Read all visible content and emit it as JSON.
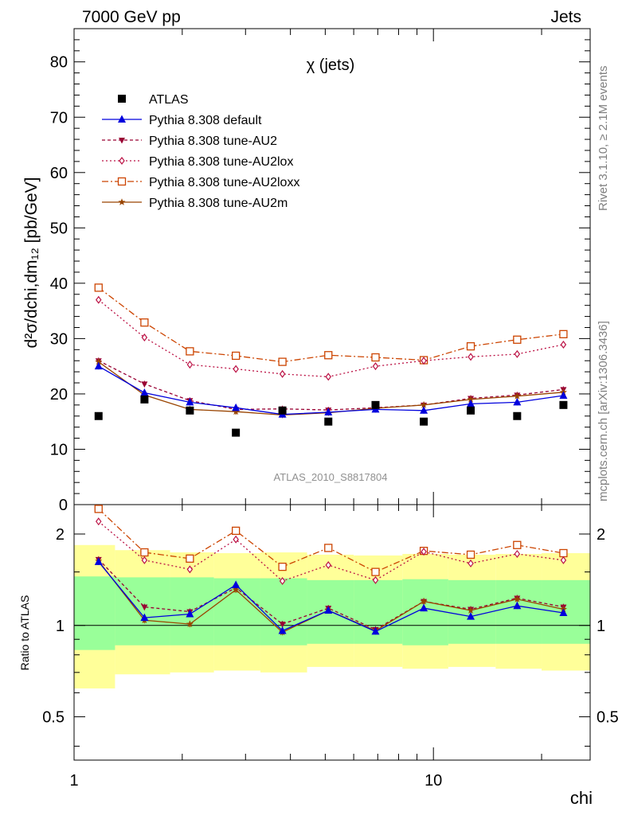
{
  "header": {
    "left": "7000 GeV pp",
    "right": "Jets"
  },
  "side_labels": {
    "rivet": "Rivet 3.1.10, ≥ 2.1M events",
    "mcplots": "mcplots.cern.ch [arXiv:1306.3436]"
  },
  "colors": {
    "atlas": "#000000",
    "default": "#0000dd",
    "au2": "#990033",
    "au2lox": "#bb1144",
    "au2loxx": "#cc4400",
    "au2m": "#994400",
    "band_outer": "#ffff99",
    "band_inner": "#99ff99"
  },
  "chart_data": [
    {
      "type": "line",
      "title": "χ (jets)",
      "annotation": "ATLAS_2010_S8817804",
      "ylabel": "d²σ/dchi,dm₁₂ [pb/GeV]",
      "xscale": "log",
      "ylim": [
        0,
        86
      ],
      "yticks": [
        0,
        10,
        20,
        30,
        40,
        50,
        60,
        70,
        80
      ],
      "x": [
        1.17,
        1.57,
        2.1,
        2.82,
        3.8,
        5.1,
        6.9,
        9.4,
        12.7,
        17.1,
        23.0
      ],
      "series": [
        {
          "name": "ATLAS",
          "values": [
            16,
            19,
            17,
            13,
            17,
            15,
            18,
            15,
            17,
            16,
            18
          ]
        },
        {
          "name": "Pythia 8.308 default",
          "values": [
            25,
            20.2,
            18.5,
            17.5,
            16.3,
            16.7,
            17.2,
            17.0,
            18.2,
            18.5,
            19.7
          ]
        },
        {
          "name": "Pythia 8.308 tune-AU2",
          "values": [
            26,
            21.8,
            18.8,
            17.2,
            17.3,
            17.1,
            17.5,
            18.0,
            19.2,
            19.8,
            20.8
          ]
        },
        {
          "name": "Pythia 8.308 tune-AU2lox",
          "values": [
            37,
            30.2,
            25.3,
            24.5,
            23.6,
            23.1,
            25.0,
            26.0,
            26.7,
            27.2,
            28.9
          ]
        },
        {
          "name": "Pythia 8.308 tune-AU2loxx",
          "values": [
            39.2,
            32.9,
            27.7,
            26.9,
            25.8,
            27.0,
            26.6,
            26.1,
            28.6,
            29.8,
            30.8
          ]
        },
        {
          "name": "Pythia 8.308 tune-AU2m",
          "values": [
            25.8,
            19.8,
            17.2,
            16.8,
            16.2,
            16.6,
            17.4,
            18.0,
            19.0,
            19.6,
            20.3
          ]
        }
      ]
    },
    {
      "type": "line",
      "ylabel": "Ratio to ATLAS",
      "xlabel": "chi",
      "xscale": "log",
      "yscale": "log",
      "ylim": [
        0.36,
        2.5
      ],
      "yticks": [
        0.5,
        1,
        2
      ],
      "xticks": [
        1,
        10
      ],
      "band_edges": [
        1,
        1.3,
        1.85,
        2.45,
        3.3,
        4.45,
        6.0,
        8.2,
        11.0,
        14.9,
        20.0,
        27.3
      ],
      "band_outer": [
        [
          0.62,
          1.84
        ],
        [
          0.69,
          1.77
        ],
        [
          0.7,
          1.74
        ],
        [
          0.71,
          1.73
        ],
        [
          0.7,
          1.74
        ],
        [
          0.73,
          1.71
        ],
        [
          0.73,
          1.7
        ],
        [
          0.72,
          1.72
        ],
        [
          0.73,
          1.71
        ],
        [
          0.72,
          1.72
        ],
        [
          0.71,
          1.73
        ]
      ],
      "band_inner": [
        [
          0.83,
          1.45
        ],
        [
          0.86,
          1.44
        ],
        [
          0.86,
          1.44
        ],
        [
          0.86,
          1.43
        ],
        [
          0.86,
          1.43
        ],
        [
          0.87,
          1.41
        ],
        [
          0.87,
          1.41
        ],
        [
          0.86,
          1.42
        ],
        [
          0.87,
          1.41
        ],
        [
          0.87,
          1.41
        ],
        [
          0.87,
          1.41
        ]
      ],
      "series": [
        {
          "name": "Pythia 8.308 default",
          "values": [
            1.62,
            1.06,
            1.09,
            1.36,
            0.96,
            1.12,
            0.955,
            1.14,
            1.07,
            1.16,
            1.1
          ]
        },
        {
          "name": "Pythia 8.308 tune-AU2",
          "values": [
            1.65,
            1.15,
            1.11,
            1.33,
            1.01,
            1.14,
            0.97,
            1.2,
            1.13,
            1.23,
            1.15
          ]
        },
        {
          "name": "Pythia 8.308 tune-AU2lox",
          "values": [
            2.2,
            1.64,
            1.53,
            1.92,
            1.4,
            1.58,
            1.41,
            1.75,
            1.6,
            1.72,
            1.64
          ]
        },
        {
          "name": "Pythia 8.308 tune-AU2loxx",
          "values": [
            2.42,
            1.74,
            1.66,
            2.05,
            1.56,
            1.8,
            1.5,
            1.76,
            1.71,
            1.84,
            1.73
          ]
        },
        {
          "name": "Pythia 8.308 tune-AU2m",
          "values": [
            1.63,
            1.04,
            1.01,
            1.31,
            0.95,
            1.12,
            0.96,
            1.2,
            1.12,
            1.22,
            1.13
          ]
        }
      ]
    }
  ]
}
